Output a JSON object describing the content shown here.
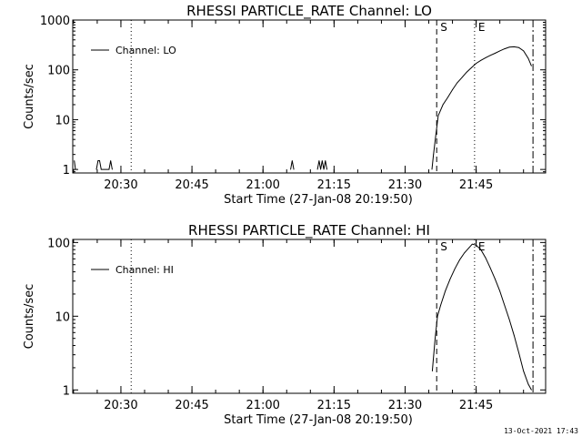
{
  "footer_timestamp": "13-Oct-2021 17:43",
  "chart_data": [
    {
      "type": "line",
      "title": "RHESSI PARTICLE_RATE Channel: LO",
      "xlabel": "Start Time (27-Jan-08 20:19:50)",
      "ylabel": "Counts/sec",
      "y_scale": "log",
      "ylim": [
        0.85,
        1000
      ],
      "xlim": [
        "20:19:50",
        "21:59:40"
      ],
      "yticks": [
        "1",
        "10",
        "100",
        "1000"
      ],
      "xticks": [
        "20:30",
        "20:45",
        "21:00",
        "21:15",
        "21:30",
        "21:45"
      ],
      "legend": {
        "entries": [
          "Channel: LO"
        ],
        "placement": "top-left"
      },
      "event_markers": [
        {
          "time": "20:32:10",
          "style": "dotted",
          "label": ""
        },
        {
          "time": "21:36:40",
          "style": "dashed",
          "label": "S"
        },
        {
          "time": "21:44:40",
          "style": "dotted",
          "label": "E"
        },
        {
          "time": "21:57:00",
          "style": "dash-dot",
          "label": ""
        }
      ],
      "series": [
        {
          "name": "Channel: LO",
          "points": [
            [
              "20:20:10",
              1.5
            ],
            [
              "20:20:25",
              1
            ],
            [
              "20:24:50",
              1
            ],
            [
              "20:25:10",
              1.5
            ],
            [
              "20:25:30",
              1.5
            ],
            [
              "20:25:50",
              1
            ],
            [
              "20:27:30",
              1
            ],
            [
              "20:27:50",
              1.5
            ],
            [
              "20:28:10",
              1
            ],
            [
              "21:05:50",
              1
            ],
            [
              "21:06:10",
              1.5
            ],
            [
              "21:06:30",
              1
            ],
            [
              "21:11:30",
              1
            ],
            [
              "21:11:50",
              1.5
            ],
            [
              "21:12:10",
              1
            ],
            [
              "21:12:30",
              1.5
            ],
            [
              "21:12:50",
              1
            ],
            [
              "21:13:10",
              1.5
            ],
            [
              "21:13:30",
              1
            ],
            [
              "21:35:40",
              1
            ],
            [
              "21:36:00",
              2
            ],
            [
              "21:36:30",
              5
            ],
            [
              "21:37:00",
              12
            ],
            [
              "21:38:00",
              20
            ],
            [
              "21:39:00",
              28
            ],
            [
              "21:40:00",
              40
            ],
            [
              "21:41:00",
              55
            ],
            [
              "21:42:00",
              70
            ],
            [
              "21:43:00",
              90
            ],
            [
              "21:44:00",
              110
            ],
            [
              "21:45:00",
              135
            ],
            [
              "21:46:00",
              155
            ],
            [
              "21:47:00",
              175
            ],
            [
              "21:48:00",
              195
            ],
            [
              "21:49:00",
              215
            ],
            [
              "21:50:00",
              240
            ],
            [
              "21:51:00",
              265
            ],
            [
              "21:52:00",
              285
            ],
            [
              "21:53:00",
              290
            ],
            [
              "21:54:00",
              280
            ],
            [
              "21:55:00",
              240
            ],
            [
              "21:56:00",
              170
            ],
            [
              "21:56:40",
              120
            ]
          ]
        }
      ]
    },
    {
      "type": "line",
      "title": "RHESSI PARTICLE_RATE Channel: HI",
      "xlabel": "Start Time (27-Jan-08 20:19:50)",
      "ylabel": "Counts/sec",
      "y_scale": "log",
      "ylim": [
        0.9,
        110
      ],
      "xlim": [
        "20:19:50",
        "21:59:40"
      ],
      "yticks": [
        "1",
        "10",
        "100"
      ],
      "xticks": [
        "20:30",
        "20:45",
        "21:00",
        "21:15",
        "21:30",
        "21:45"
      ],
      "legend": {
        "entries": [
          "Channel: HI"
        ],
        "placement": "top-left"
      },
      "event_markers": [
        {
          "time": "20:32:10",
          "style": "dotted",
          "label": ""
        },
        {
          "time": "21:36:40",
          "style": "dashed",
          "label": "S"
        },
        {
          "time": "21:44:40",
          "style": "dotted",
          "label": "E"
        },
        {
          "time": "21:57:00",
          "style": "dash-dot",
          "label": ""
        }
      ],
      "series": [
        {
          "name": "Channel: HI",
          "points": [
            [
              "21:35:45",
              1.8
            ],
            [
              "21:36:20",
              5
            ],
            [
              "21:36:50",
              10
            ],
            [
              "21:37:30",
              14
            ],
            [
              "21:38:30",
              22
            ],
            [
              "21:39:30",
              32
            ],
            [
              "21:40:30",
              44
            ],
            [
              "21:41:30",
              58
            ],
            [
              "21:42:30",
              72
            ],
            [
              "21:43:30",
              85
            ],
            [
              "21:44:10",
              95
            ],
            [
              "21:45:00",
              92
            ],
            [
              "21:46:00",
              80
            ],
            [
              "21:47:00",
              62
            ],
            [
              "21:48:00",
              45
            ],
            [
              "21:49:00",
              32
            ],
            [
              "21:50:00",
              22
            ],
            [
              "21:51:00",
              14
            ],
            [
              "21:52:00",
              9
            ],
            [
              "21:53:00",
              5.5
            ],
            [
              "21:54:00",
              3.2
            ],
            [
              "21:55:00",
              1.8
            ],
            [
              "21:56:00",
              1.2
            ],
            [
              "21:56:40",
              1
            ]
          ]
        }
      ]
    }
  ]
}
